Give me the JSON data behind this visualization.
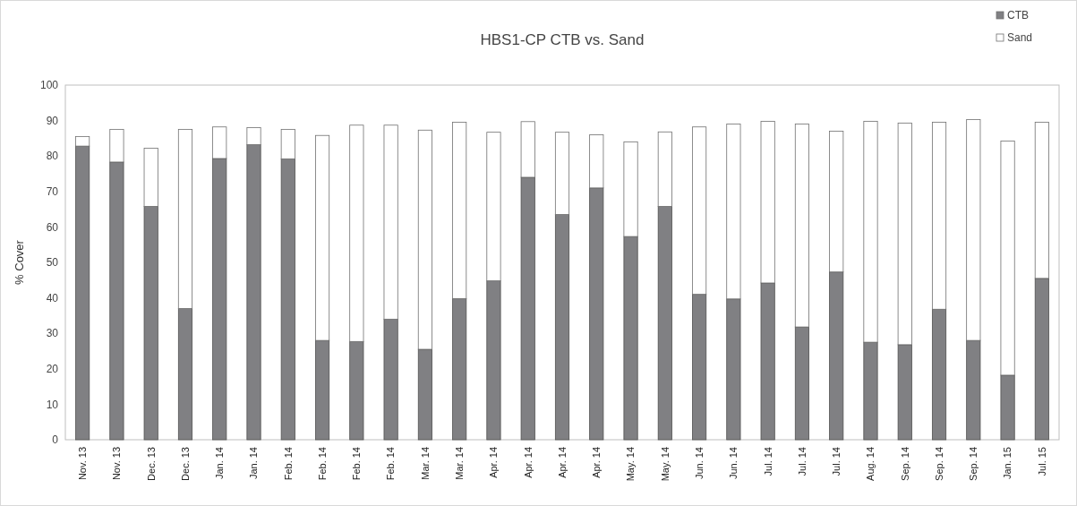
{
  "chart_data": {
    "type": "bar",
    "title": "HBS1-CP CTB vs. Sand",
    "ylabel": "% Cover",
    "stacked": true,
    "legend": "top right",
    "grid": false,
    "ylim": [
      0,
      100
    ],
    "yticks": [
      0,
      10,
      20,
      30,
      40,
      50,
      60,
      70,
      80,
      90,
      100
    ],
    "categories": [
      "Nov. 13",
      "Nov. 13",
      "Dec. 13",
      "Dec. 13",
      "Jan. 14",
      "Jan. 14",
      "Feb. 14",
      "Feb. 14",
      "Feb. 14",
      "Feb. 14",
      "Mar. 14",
      "Mar. 14",
      "Apr. 14",
      "Apr. 14",
      "Apr. 14",
      "Apr. 14",
      "May. 14",
      "May. 14",
      "Jun. 14",
      "Jun. 14",
      "Jul. 14",
      "Jul. 14",
      "Jul. 14",
      "Aug. 14",
      "Sep. 14",
      "Sep. 14",
      "Sep. 14",
      "Jan. 15",
      "Jul. 15"
    ],
    "series": [
      {
        "name": "CTB",
        "color": "#808083",
        "values": [
          82.8,
          78.3,
          65.8,
          37,
          79.3,
          83.2,
          79.2,
          28,
          27.7,
          34,
          25.5,
          39.8,
          44.8,
          74,
          63.5,
          71,
          57.3,
          65.8,
          41,
          39.7,
          44.2,
          31.8,
          47.3,
          27.5,
          26.8,
          36.8,
          28,
          18.2,
          45.5
        ]
      },
      {
        "name": "Sand",
        "color": "#ffffff",
        "values": [
          2.7,
          9.2,
          16.4,
          50.5,
          8.9,
          4.8,
          8.3,
          57.8,
          61,
          54.7,
          61.8,
          49.7,
          41.9,
          15.7,
          23.2,
          15,
          26.7,
          21,
          47.2,
          49.3,
          45.6,
          57.2,
          39.7,
          62.3,
          62.5,
          52.7,
          62.3,
          66,
          44
        ]
      }
    ]
  }
}
